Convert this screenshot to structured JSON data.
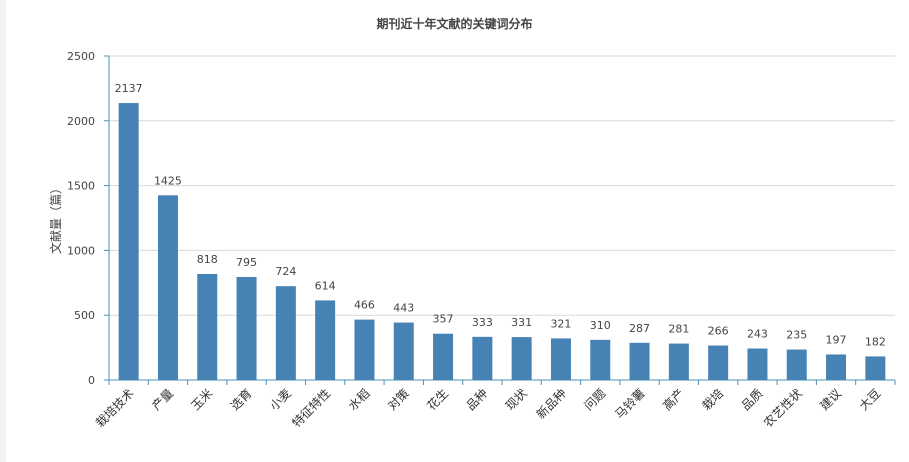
{
  "chart_data": {
    "type": "bar",
    "title": "期刊近十年文献的关键词分布",
    "xlabel": "",
    "ylabel": "文献量（篇）",
    "ylim": [
      0,
      2500
    ],
    "yticks": [
      0,
      500,
      1000,
      1500,
      2000,
      2500
    ],
    "grid": true,
    "categories": [
      "栽培技术",
      "产量",
      "玉米",
      "选育",
      "小麦",
      "特征特性",
      "水稻",
      "对策",
      "花生",
      "品种",
      "现状",
      "新品种",
      "问题",
      "马铃薯",
      "高产",
      "栽培",
      "品质",
      "农艺性状",
      "建议",
      "大豆"
    ],
    "values": [
      2137,
      1425,
      818,
      795,
      724,
      614,
      466,
      443,
      357,
      333,
      331,
      321,
      310,
      287,
      281,
      266,
      243,
      235,
      197,
      182
    ],
    "bar_color": "#4682b4",
    "grid_color": "#d9d9d9",
    "axis_color": "#4a90b8"
  }
}
